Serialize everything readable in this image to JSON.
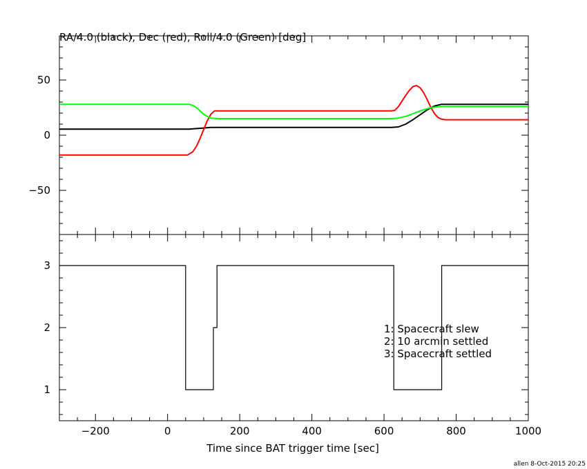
{
  "chart_data": [
    {
      "type": "line",
      "title": "RA/4.0 (black), Dec (red), Roll/4.0 (Green) [deg]",
      "xlim": [
        -300,
        1000
      ],
      "ylim": [
        -90,
        90
      ],
      "yticks": [
        -50,
        0,
        50
      ],
      "series": [
        {
          "color": "#000000",
          "x": [
            -300,
            60,
            80,
            100,
            120,
            140,
            370,
            620,
            640,
            660,
            680,
            700,
            720,
            740,
            760,
            1000
          ],
          "y": [
            5.5,
            5.5,
            6,
            6.5,
            7,
            7,
            7,
            7,
            7.5,
            10,
            14,
            18.5,
            23,
            26.5,
            28,
            28
          ]
        },
        {
          "color": "#ff0000",
          "x": [
            -300,
            55,
            70,
            80,
            90,
            100,
            110,
            120,
            130,
            370,
            620,
            630,
            640,
            650,
            660,
            670,
            680,
            690,
            700,
            710,
            720,
            730,
            740,
            750,
            760,
            770,
            1000
          ],
          "y": [
            -18,
            -18,
            -15,
            -10,
            -3,
            5,
            13,
            19,
            22,
            22,
            22,
            22.5,
            26,
            31,
            36,
            40.5,
            44,
            45,
            43,
            38.5,
            32,
            25,
            19.5,
            16,
            14.5,
            14,
            14
          ]
        },
        {
          "color": "#00ff00",
          "x": [
            -300,
            50,
            60,
            70,
            80,
            90,
            100,
            110,
            120,
            140,
            370,
            620,
            640,
            660,
            680,
            700,
            720,
            740,
            760,
            800,
            1000
          ],
          "y": [
            28,
            28,
            28,
            27,
            25,
            22,
            19,
            17,
            15.5,
            15,
            15,
            15,
            15.5,
            17,
            19.5,
            22,
            24,
            25.5,
            26,
            26,
            26
          ]
        }
      ]
    },
    {
      "type": "line",
      "xlabel": "Time since BAT trigger time [sec]",
      "xlim": [
        -300,
        1000
      ],
      "ylim": [
        0.5,
        3.5
      ],
      "xticks": [
        -200,
        0,
        200,
        400,
        600,
        800,
        1000
      ],
      "yticks": [
        1,
        2,
        3
      ],
      "legend": [
        "1: Spacecraft slew",
        "2: 10 arcmin settled",
        "3: Spacecraft settled"
      ],
      "series": [
        {
          "color": "#000000",
          "step": true,
          "x": [
            -300,
            50,
            50,
            127,
            127,
            137,
            137,
            627,
            627,
            760,
            760,
            1000
          ],
          "y": [
            3,
            3,
            1,
            1,
            2,
            2,
            3,
            3,
            1,
            1,
            3,
            3
          ]
        }
      ]
    }
  ],
  "footer": {
    "credit": "allen  8-Oct-2015 20:25"
  }
}
